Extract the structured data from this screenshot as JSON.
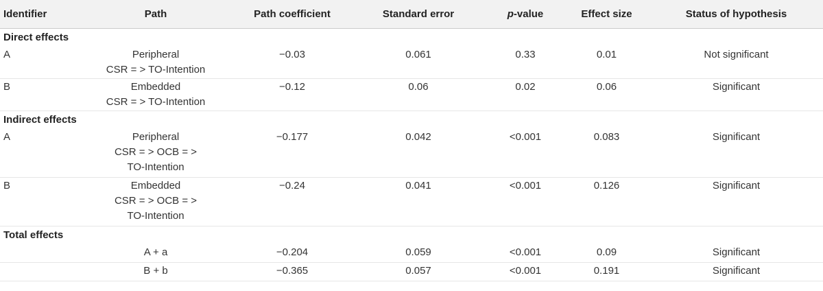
{
  "table": {
    "headers": {
      "identifier": "Identifier",
      "path": "Path",
      "path_coefficient": "Path coefficient",
      "standard_error": "Standard error",
      "p_value_italic": "p",
      "p_value_rest": "-value",
      "effect_size": "Effect size",
      "status": "Status of hypothesis"
    },
    "sections": [
      {
        "title": "Direct effects",
        "rows": [
          {
            "identifier": "A",
            "path_lines": [
              "Peripheral",
              "CSR = > TO-Intention"
            ],
            "path_coefficient": "−0.03",
            "standard_error": "0.061",
            "p_value": "0.33",
            "effect_size": "0.01",
            "status": "Not significant"
          },
          {
            "identifier": "B",
            "path_lines": [
              "Embedded",
              "CSR = > TO-Intention"
            ],
            "path_coefficient": "−0.12",
            "standard_error": "0.06",
            "p_value": "0.02",
            "effect_size": "0.06",
            "status": "Significant"
          }
        ]
      },
      {
        "title": "Indirect effects",
        "rows": [
          {
            "identifier": "A",
            "path_lines": [
              "Peripheral",
              "CSR = > OCB = >",
              "TO-Intention"
            ],
            "path_coefficient": "−0.177",
            "standard_error": "0.042",
            "p_value": "<0.001",
            "effect_size": "0.083",
            "status": "Significant"
          },
          {
            "identifier": "B",
            "path_lines": [
              "Embedded",
              "CSR = > OCB = >",
              "TO-Intention"
            ],
            "path_coefficient": "−0.24",
            "standard_error": "0.041",
            "p_value": "<0.001",
            "effect_size": "0.126",
            "status": "Significant"
          }
        ]
      },
      {
        "title": "Total effects",
        "rows": [
          {
            "identifier": "",
            "path_lines": [
              "A + a"
            ],
            "path_coefficient": "−0.204",
            "standard_error": "0.059",
            "p_value": "<0.001",
            "effect_size": "0.09",
            "status": "Significant"
          },
          {
            "identifier": "",
            "path_lines": [
              "B + b"
            ],
            "path_coefficient": "−0.365",
            "standard_error": "0.057",
            "p_value": "<0.001",
            "effect_size": "0.191",
            "status": "Significant"
          }
        ]
      }
    ]
  }
}
